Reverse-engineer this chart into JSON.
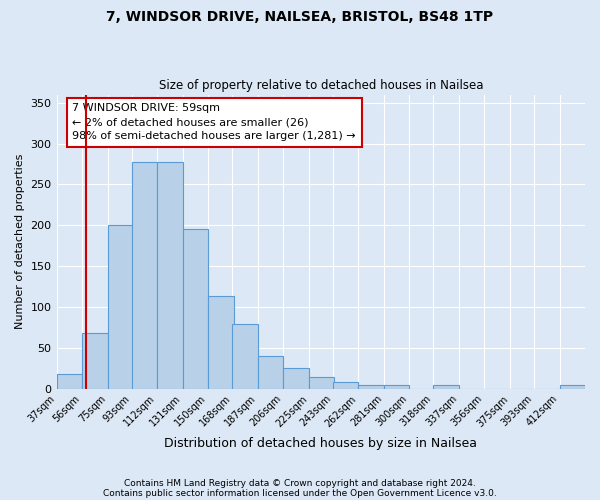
{
  "title": "7, WINDSOR DRIVE, NAILSEA, BRISTOL, BS48 1TP",
  "subtitle": "Size of property relative to detached houses in Nailsea",
  "xlabel": "Distribution of detached houses by size in Nailsea",
  "ylabel": "Number of detached properties",
  "bar_color": "#b8d0e8",
  "bar_edge_color": "#5b9bd5",
  "background_color": "#dce8f5",
  "plot_bg_color": "#dce8f5",
  "grid_color": "#ffffff",
  "red_line_x": 59,
  "red_line_color": "#cc0000",
  "annotation_line1": "7 WINDSOR DRIVE: 59sqm",
  "annotation_line2": "← 2% of detached houses are smaller (26)",
  "annotation_line3": "98% of semi-detached houses are larger (1,281) →",
  "footnote1": "Contains HM Land Registry data © Crown copyright and database right 2024.",
  "footnote2": "Contains public sector information licensed under the Open Government Licence v3.0.",
  "bins": [
    37,
    56,
    75,
    93,
    112,
    131,
    150,
    168,
    187,
    206,
    225,
    243,
    262,
    281,
    300,
    318,
    337,
    356,
    375,
    393,
    412
  ],
  "counts": [
    18,
    68,
    200,
    278,
    278,
    196,
    113,
    79,
    40,
    25,
    14,
    8,
    5,
    5,
    0,
    5,
    0,
    0,
    0,
    0,
    5
  ],
  "ylim": [
    0,
    360
  ],
  "yticks": [
    0,
    50,
    100,
    150,
    200,
    250,
    300,
    350
  ]
}
